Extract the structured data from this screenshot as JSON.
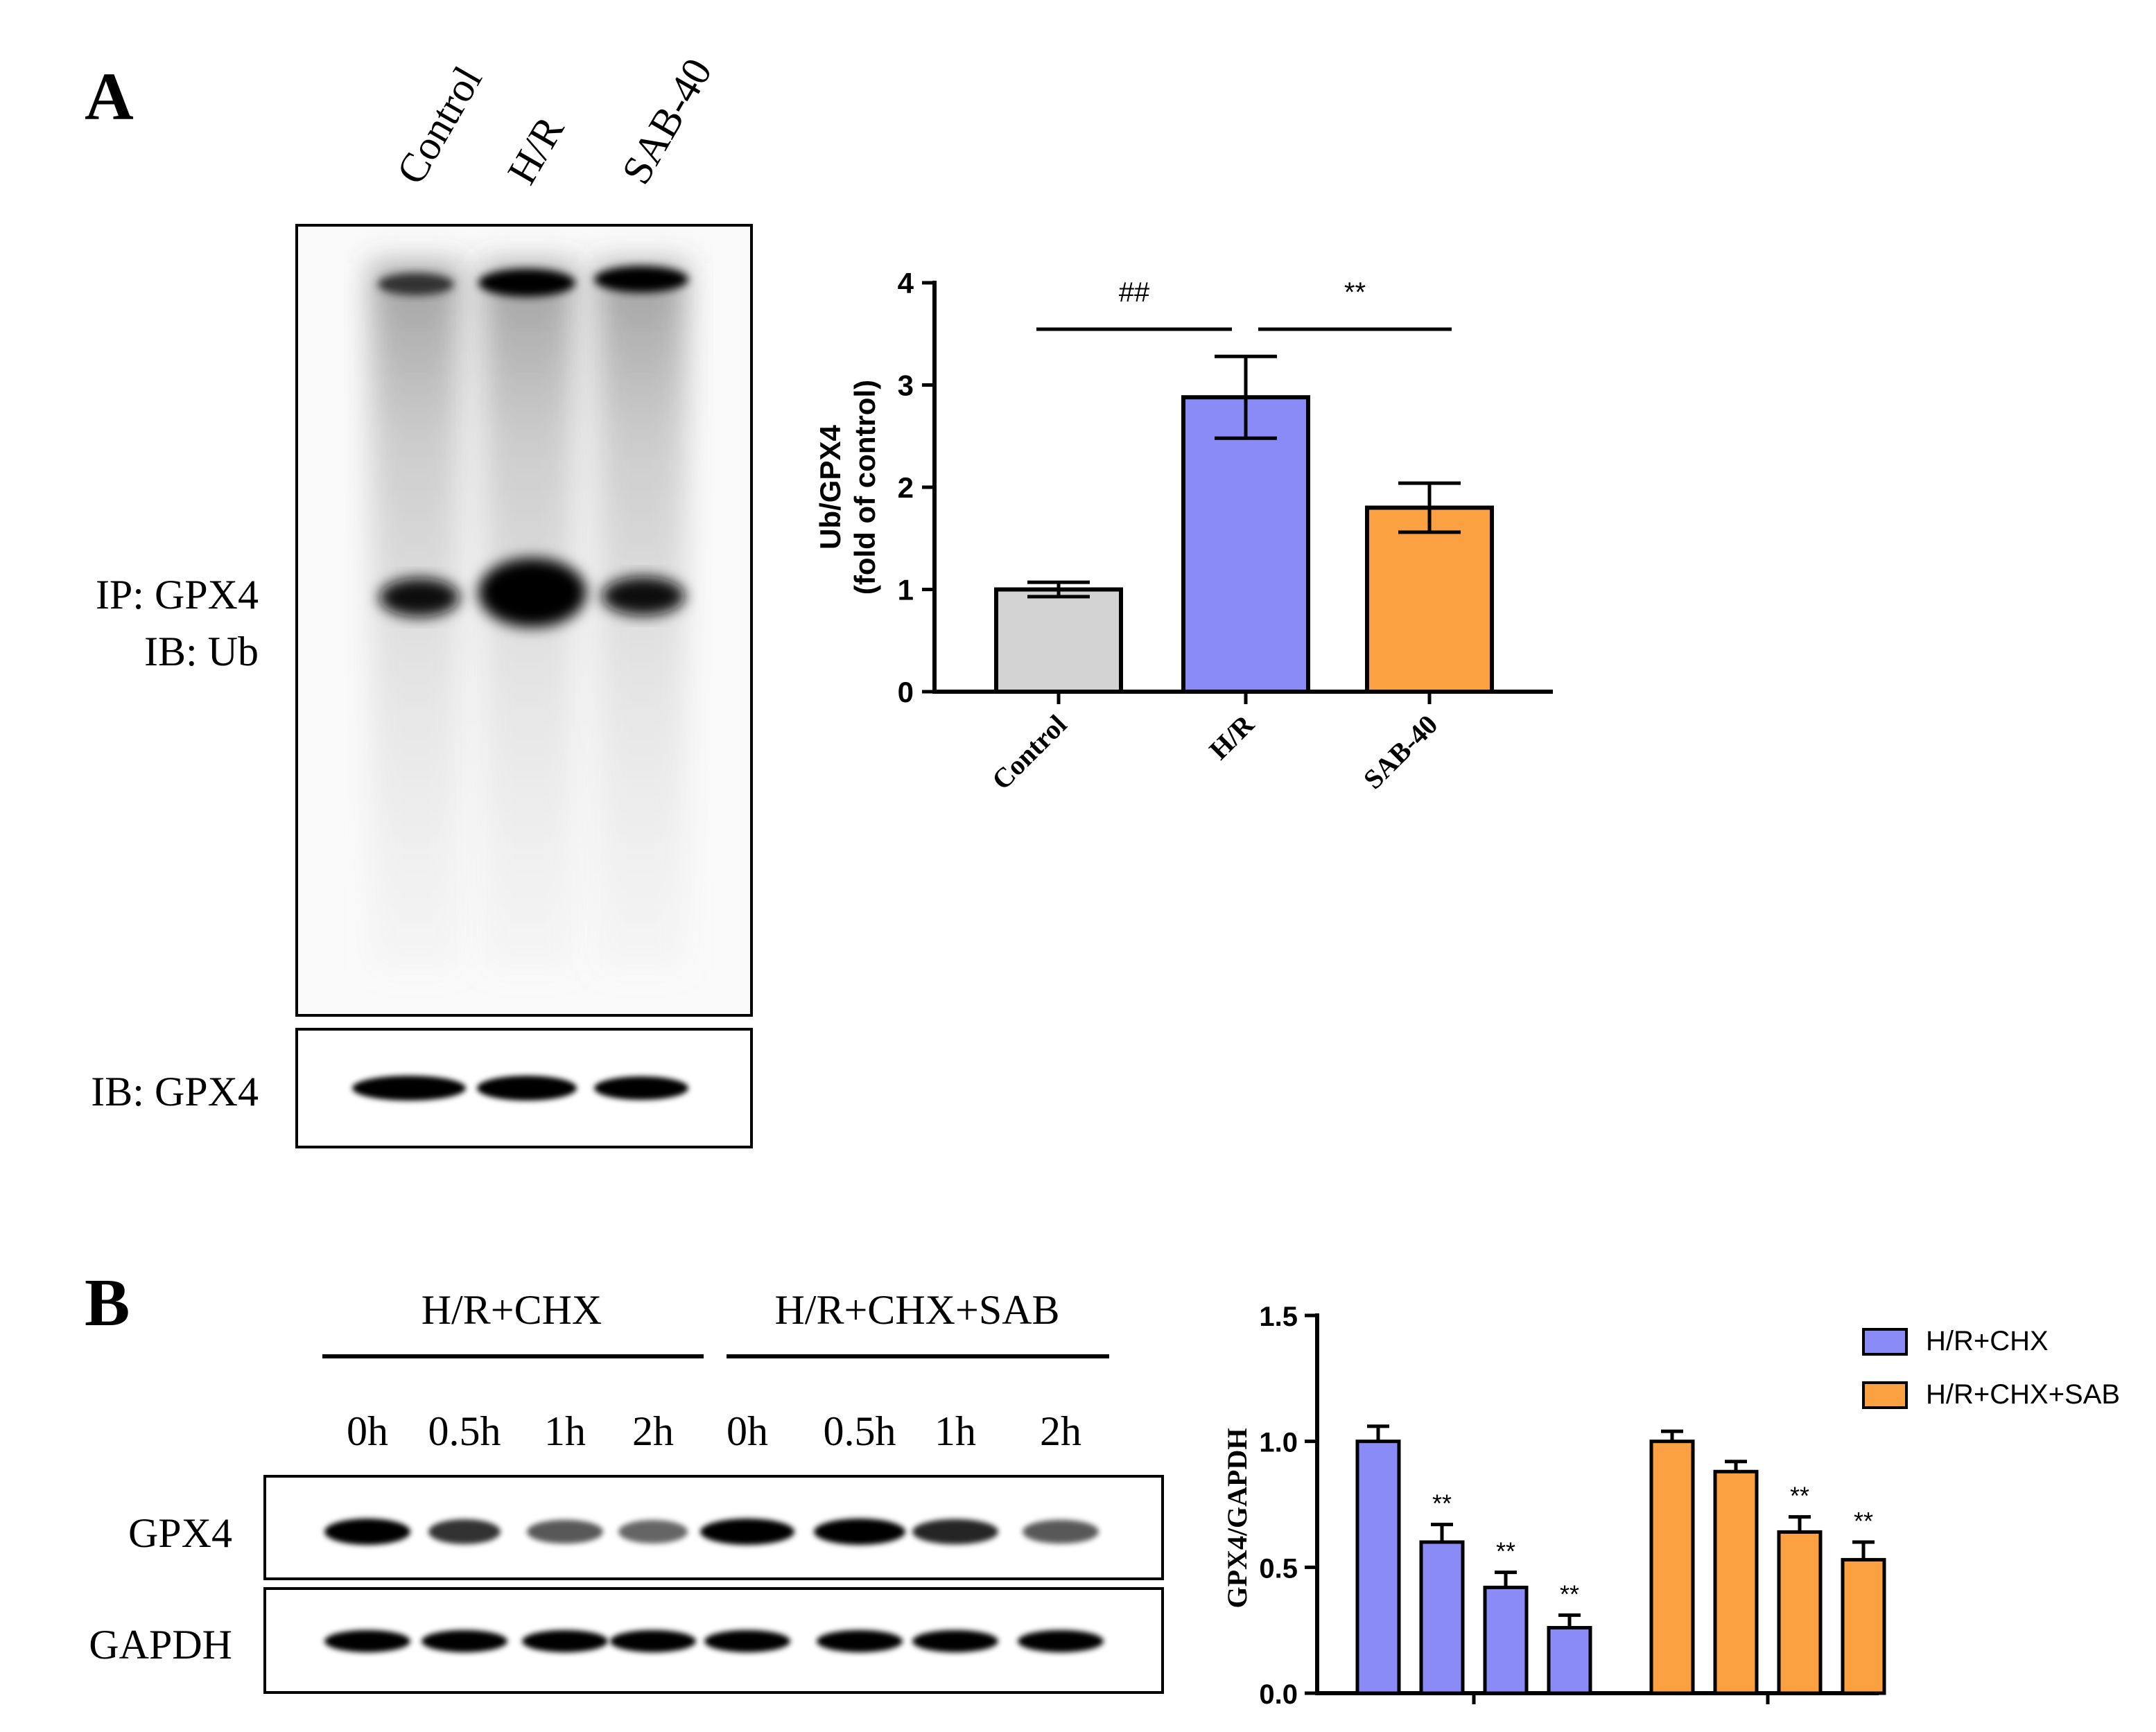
{
  "colors": {
    "control": "#d3d3d3",
    "hr": "#8b8bf8",
    "sab": "#fba142",
    "ink": "#000000"
  },
  "panel_a": {
    "letter": "A",
    "lane_labels": [
      "Control",
      "H/R",
      "SAB-40"
    ],
    "blot_label_ip": "IP: GPX4",
    "blot_label_ib": "IB: Ub",
    "blot_label_gpx4": "IB: GPX4"
  },
  "panel_b": {
    "letter": "B",
    "group_labels": [
      "H/R+CHX",
      "H/R+CHX+SAB"
    ],
    "time_labels": [
      "0h",
      "0.5h",
      "1h",
      "2h",
      "0h",
      "0.5h",
      "1h",
      "2h"
    ],
    "row_labels": [
      "GPX4",
      "GAPDH"
    ]
  },
  "chart_data": [
    {
      "type": "bar",
      "categories": [
        "Control",
        "H/R",
        "SAB-40"
      ],
      "values": [
        1.0,
        2.88,
        1.8
      ],
      "errors": [
        0.07,
        0.4,
        0.24
      ],
      "ylabel_line1": "Ub/GPX4",
      "ylabel_line2": "(fold of control)",
      "ylim": [
        0,
        4
      ],
      "yticks": [
        "0",
        "1",
        "2",
        "3",
        "4"
      ],
      "significance": [
        {
          "between": [
            "Control",
            "H/R"
          ],
          "label": "##"
        },
        {
          "between": [
            "H/R",
            "SAB-40"
          ],
          "label": "**"
        }
      ]
    },
    {
      "type": "bar",
      "series": [
        {
          "name": "H/R+CHX",
          "values": [
            1.0,
            0.6,
            0.42,
            0.26
          ],
          "errors": [
            0.06,
            0.07,
            0.06,
            0.05
          ],
          "marks": [
            "",
            "**",
            "**",
            "**"
          ]
        },
        {
          "name": "H/R+CHX+SAB",
          "values": [
            1.0,
            0.88,
            0.64,
            0.53
          ],
          "errors": [
            0.04,
            0.04,
            0.06,
            0.07
          ],
          "marks": [
            "",
            "",
            "**",
            "**"
          ]
        }
      ],
      "ylabel": "GPX4/GAPDH",
      "ylim": [
        0,
        1.5
      ],
      "yticks": [
        "0.0",
        "0.5",
        "1.0",
        "1.5"
      ]
    }
  ]
}
